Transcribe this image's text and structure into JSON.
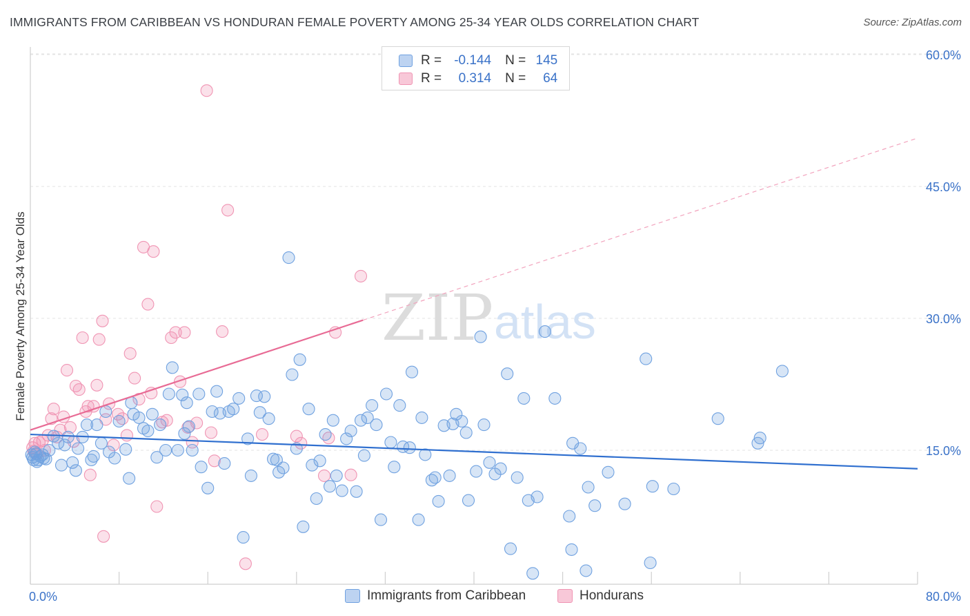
{
  "title": "IMMIGRANTS FROM CARIBBEAN VS HONDURAN FEMALE POVERTY AMONG 25-34 YEAR OLDS CORRELATION CHART",
  "source": "Source: ZipAtlas.com",
  "watermark": {
    "zip": "ZIP",
    "atlas": "atlas"
  },
  "legend": {
    "r_label": "R =",
    "n_label": "N =",
    "rows": [
      {
        "r": "-0.144",
        "n": "145",
        "color": "#6fa1e0"
      },
      {
        "r": "0.314",
        "n": "64",
        "color": "#f094b3"
      }
    ]
  },
  "bottom_legend": [
    {
      "label": "Immigrants from Caribbean",
      "color": "#6fa1e0"
    },
    {
      "label": "Hondurans",
      "color": "#f094b3"
    }
  ],
  "chart_data": {
    "type": "scatter",
    "title": "IMMIGRANTS FROM CARIBBEAN VS HONDURAN FEMALE POVERTY AMONG 25-34 YEAR OLDS CORRELATION CHART",
    "xlabel": "",
    "ylabel": "Female Poverty Among 25-34 Year Olds",
    "xlim": [
      0,
      80
    ],
    "ylim": [
      0,
      63
    ],
    "x_tick_labels": [
      "0.0%",
      "80.0%"
    ],
    "y_ticks": [
      15,
      30,
      45,
      60
    ],
    "y_tick_labels": [
      "15.0%",
      "30.0%",
      "45.0%",
      "60.0%"
    ],
    "grid": true,
    "legend_position": "top-center",
    "series": [
      {
        "name": "Immigrants from Caribbean",
        "color": "#6fa1e0",
        "r": -0.144,
        "n": 145,
        "trend": {
          "x": [
            0,
            80
          ],
          "y": [
            16.8,
            12.9
          ],
          "style": "solid"
        },
        "points": [
          [
            0.1,
            14.5
          ],
          [
            0.3,
            13.9
          ],
          [
            0.5,
            14.6
          ],
          [
            0.7,
            13.9
          ],
          [
            0.9,
            14.3
          ],
          [
            1.1,
            14.5
          ],
          [
            1.4,
            14.0
          ],
          [
            1.7,
            15.0
          ],
          [
            2.1,
            16.6
          ],
          [
            2.5,
            15.8
          ],
          [
            2.8,
            13.3
          ],
          [
            3.1,
            15.6
          ],
          [
            3.4,
            16.5
          ],
          [
            3.8,
            13.6
          ],
          [
            4.1,
            12.7
          ],
          [
            4.3,
            15.2
          ],
          [
            4.7,
            16.5
          ],
          [
            5.1,
            17.9
          ],
          [
            5.5,
            13.9
          ],
          [
            5.7,
            14.3
          ],
          [
            6.0,
            17.9
          ],
          [
            6.4,
            15.8
          ],
          [
            6.8,
            19.4
          ],
          [
            7.1,
            14.8
          ],
          [
            7.6,
            14.1
          ],
          [
            8.0,
            18.3
          ],
          [
            8.6,
            15.1
          ],
          [
            8.9,
            11.8
          ],
          [
            9.1,
            20.4
          ],
          [
            9.3,
            19.1
          ],
          [
            9.8,
            18.7
          ],
          [
            10.2,
            17.5
          ],
          [
            10.6,
            17.2
          ],
          [
            11.0,
            19.1
          ],
          [
            11.4,
            14.2
          ],
          [
            11.7,
            17.9
          ],
          [
            12.2,
            15.0
          ],
          [
            12.5,
            21.4
          ],
          [
            12.8,
            24.4
          ],
          [
            13.3,
            15.0
          ],
          [
            13.7,
            21.3
          ],
          [
            13.9,
            16.9
          ],
          [
            14.1,
            20.4
          ],
          [
            14.3,
            17.7
          ],
          [
            14.6,
            15.0
          ],
          [
            15.2,
            21.4
          ],
          [
            15.4,
            13.1
          ],
          [
            16.0,
            10.7
          ],
          [
            16.4,
            19.4
          ],
          [
            16.8,
            21.7
          ],
          [
            17.1,
            19.2
          ],
          [
            17.5,
            13.5
          ],
          [
            17.9,
            19.4
          ],
          [
            18.3,
            19.7
          ],
          [
            18.8,
            20.9
          ],
          [
            19.2,
            5.1
          ],
          [
            19.6,
            16.3
          ],
          [
            19.9,
            12.1
          ],
          [
            20.4,
            21.2
          ],
          [
            20.7,
            19.3
          ],
          [
            21.1,
            21.1
          ],
          [
            21.5,
            18.6
          ],
          [
            21.9,
            14.0
          ],
          [
            22.2,
            13.9
          ],
          [
            22.4,
            12.5
          ],
          [
            22.8,
            13.0
          ],
          [
            23.3,
            36.9
          ],
          [
            23.6,
            23.6
          ],
          [
            24.0,
            15.2
          ],
          [
            24.3,
            25.3
          ],
          [
            24.6,
            6.3
          ],
          [
            25.1,
            19.7
          ],
          [
            25.4,
            13.3
          ],
          [
            25.8,
            9.5
          ],
          [
            26.1,
            13.8
          ],
          [
            26.6,
            16.8
          ],
          [
            27.0,
            10.9
          ],
          [
            27.3,
            18.4
          ],
          [
            27.6,
            12.1
          ],
          [
            28.1,
            10.4
          ],
          [
            28.5,
            16.3
          ],
          [
            28.9,
            17.2
          ],
          [
            29.4,
            10.3
          ],
          [
            29.8,
            18.4
          ],
          [
            30.1,
            14.4
          ],
          [
            30.4,
            18.7
          ],
          [
            30.8,
            20.1
          ],
          [
            31.2,
            17.9
          ],
          [
            31.6,
            7.1
          ],
          [
            32.1,
            21.4
          ],
          [
            32.5,
            15.9
          ],
          [
            32.8,
            13.1
          ],
          [
            33.3,
            20.1
          ],
          [
            33.6,
            15.4
          ],
          [
            34.2,
            15.3
          ],
          [
            34.4,
            23.9
          ],
          [
            35.0,
            7.1
          ],
          [
            35.3,
            18.7
          ],
          [
            35.6,
            14.5
          ],
          [
            36.2,
            11.6
          ],
          [
            36.5,
            11.9
          ],
          [
            36.8,
            9.2
          ],
          [
            37.3,
            17.8
          ],
          [
            37.8,
            12.1
          ],
          [
            38.1,
            18.0
          ],
          [
            38.4,
            19.1
          ],
          [
            38.9,
            18.3
          ],
          [
            39.3,
            17.0
          ],
          [
            39.5,
            9.3
          ],
          [
            40.2,
            12.6
          ],
          [
            40.6,
            27.9
          ],
          [
            40.9,
            17.9
          ],
          [
            41.4,
            13.6
          ],
          [
            41.9,
            12.3
          ],
          [
            42.4,
            12.9
          ],
          [
            43.0,
            23.7
          ],
          [
            43.3,
            3.8
          ],
          [
            43.9,
            11.9
          ],
          [
            44.5,
            20.9
          ],
          [
            44.9,
            9.3
          ],
          [
            45.3,
            1.0
          ],
          [
            45.7,
            9.7
          ],
          [
            46.4,
            28.5
          ],
          [
            47.3,
            20.9
          ],
          [
            48.6,
            7.5
          ],
          [
            48.8,
            3.7
          ],
          [
            48.9,
            15.8
          ],
          [
            49.6,
            15.2
          ],
          [
            50.3,
            10.8
          ],
          [
            50.1,
            1.3
          ],
          [
            50.9,
            8.7
          ],
          [
            52.1,
            12.5
          ],
          [
            53.6,
            8.9
          ],
          [
            55.5,
            25.4
          ],
          [
            55.9,
            2.2
          ],
          [
            56.1,
            10.9
          ],
          [
            58.0,
            10.6
          ],
          [
            62.0,
            18.6
          ],
          [
            65.6,
            15.8
          ],
          [
            65.8,
            16.4
          ],
          [
            67.8,
            24.0
          ],
          [
            0.2,
            14.2
          ],
          [
            0.6,
            13.7
          ],
          [
            1.2,
            14.1
          ],
          [
            0.4,
            14.8
          ]
        ]
      },
      {
        "name": "Hondurans",
        "color": "#f094b3",
        "r": 0.314,
        "n": 64,
        "trend": {
          "x": [
            0,
            30
          ],
          "y": [
            17.3,
            29.8
          ],
          "style": "solid",
          "extended_to": [
            80,
            50.5
          ],
          "extended_style": "dashed"
        },
        "points": [
          [
            0.2,
            15.3
          ],
          [
            0.4,
            15.8
          ],
          [
            0.6,
            14.6
          ],
          [
            0.8,
            15.9
          ],
          [
            1.1,
            16.1
          ],
          [
            1.3,
            15.0
          ],
          [
            1.6,
            16.7
          ],
          [
            1.9,
            18.6
          ],
          [
            2.1,
            19.7
          ],
          [
            2.4,
            16.5
          ],
          [
            2.7,
            17.3
          ],
          [
            3.0,
            18.8
          ],
          [
            3.3,
            24.1
          ],
          [
            3.6,
            17.6
          ],
          [
            3.9,
            16.0
          ],
          [
            4.1,
            22.3
          ],
          [
            4.4,
            21.9
          ],
          [
            4.7,
            27.8
          ],
          [
            5.0,
            19.4
          ],
          [
            5.2,
            20.0
          ],
          [
            5.4,
            12.2
          ],
          [
            5.7,
            20.0
          ],
          [
            6.0,
            22.4
          ],
          [
            6.2,
            27.6
          ],
          [
            6.5,
            29.7
          ],
          [
            6.6,
            5.2
          ],
          [
            6.8,
            18.5
          ],
          [
            7.1,
            20.3
          ],
          [
            7.5,
            15.6
          ],
          [
            7.9,
            19.1
          ],
          [
            8.3,
            18.6
          ],
          [
            8.7,
            16.7
          ],
          [
            9.0,
            26.0
          ],
          [
            9.4,
            23.2
          ],
          [
            9.8,
            20.8
          ],
          [
            10.2,
            38.1
          ],
          [
            10.6,
            31.6
          ],
          [
            10.9,
            21.5
          ],
          [
            11.1,
            37.6
          ],
          [
            11.4,
            8.6
          ],
          [
            11.9,
            18.2
          ],
          [
            12.3,
            18.4
          ],
          [
            12.7,
            27.8
          ],
          [
            13.1,
            28.4
          ],
          [
            13.5,
            22.8
          ],
          [
            13.9,
            28.4
          ],
          [
            14.2,
            17.6
          ],
          [
            14.6,
            15.9
          ],
          [
            15.0,
            18.1
          ],
          [
            15.9,
            55.9
          ],
          [
            16.3,
            17.0
          ],
          [
            16.6,
            13.8
          ],
          [
            17.3,
            28.5
          ],
          [
            17.8,
            42.3
          ],
          [
            19.4,
            2.1
          ],
          [
            20.9,
            16.8
          ],
          [
            24.0,
            16.6
          ],
          [
            24.4,
            15.8
          ],
          [
            26.5,
            12.1
          ],
          [
            26.9,
            16.4
          ],
          [
            27.5,
            28.4
          ],
          [
            28.9,
            12.2
          ],
          [
            29.8,
            34.8
          ],
          [
            0.3,
            14.9
          ]
        ]
      }
    ]
  }
}
